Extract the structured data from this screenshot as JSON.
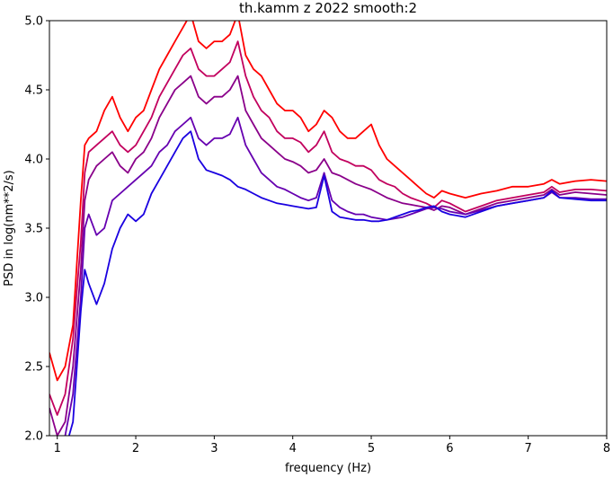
{
  "chart_data": {
    "type": "line",
    "title": "th.kamm z 2022 smooth:2",
    "xlabel": "frequency (Hz)",
    "ylabel": "PSD in log(nm**2/s)",
    "xlim": [
      0.9,
      8.0
    ],
    "ylim": [
      2.0,
      5.0
    ],
    "xticks": [
      "1",
      "2",
      "3",
      "4",
      "5",
      "6",
      "7",
      "8"
    ],
    "yticks": [
      "2.0",
      "2.5",
      "3.0",
      "3.5",
      "4.0",
      "4.5",
      "5.0"
    ],
    "grid": false,
    "legend": "none",
    "series": [
      {
        "color": "#ff0000",
        "x": [
          0.9,
          1.0,
          1.1,
          1.2,
          1.3,
          1.35,
          1.4,
          1.5,
          1.6,
          1.7,
          1.8,
          1.9,
          2.0,
          2.1,
          2.2,
          2.3,
          2.4,
          2.5,
          2.6,
          2.7,
          2.8,
          2.9,
          3.0,
          3.1,
          3.2,
          3.3,
          3.4,
          3.5,
          3.6,
          3.7,
          3.8,
          3.9,
          4.0,
          4.1,
          4.2,
          4.3,
          4.4,
          4.5,
          4.6,
          4.7,
          4.8,
          4.9,
          5.0,
          5.1,
          5.2,
          5.3,
          5.4,
          5.5,
          5.6,
          5.7,
          5.8,
          5.9,
          6.0,
          6.2,
          6.4,
          6.6,
          6.8,
          7.0,
          7.2,
          7.3,
          7.4,
          7.6,
          7.8,
          8.0
        ],
        "y": [
          2.6,
          2.4,
          2.5,
          2.8,
          3.7,
          4.1,
          4.15,
          4.2,
          4.35,
          4.45,
          4.3,
          4.2,
          4.3,
          4.35,
          4.5,
          4.65,
          4.75,
          4.85,
          4.95,
          5.05,
          4.85,
          4.8,
          4.85,
          4.85,
          4.9,
          5.05,
          4.75,
          4.65,
          4.6,
          4.5,
          4.4,
          4.35,
          4.35,
          4.3,
          4.2,
          4.25,
          4.35,
          4.3,
          4.2,
          4.15,
          4.15,
          4.2,
          4.25,
          4.1,
          4.0,
          3.95,
          3.9,
          3.85,
          3.8,
          3.75,
          3.72,
          3.77,
          3.75,
          3.72,
          3.75,
          3.77,
          3.8,
          3.8,
          3.82,
          3.85,
          3.82,
          3.84,
          3.85,
          3.84
        ]
      },
      {
        "color": "#c2005e",
        "x": [
          0.9,
          1.0,
          1.1,
          1.2,
          1.3,
          1.35,
          1.4,
          1.5,
          1.6,
          1.7,
          1.8,
          1.9,
          2.0,
          2.1,
          2.2,
          2.3,
          2.4,
          2.5,
          2.6,
          2.7,
          2.8,
          2.9,
          3.0,
          3.1,
          3.2,
          3.3,
          3.4,
          3.5,
          3.6,
          3.7,
          3.8,
          3.9,
          4.0,
          4.1,
          4.2,
          4.3,
          4.4,
          4.5,
          4.6,
          4.7,
          4.8,
          4.9,
          5.0,
          5.1,
          5.2,
          5.3,
          5.4,
          5.5,
          5.6,
          5.7,
          5.8,
          5.9,
          6.0,
          6.2,
          6.4,
          6.6,
          6.8,
          7.0,
          7.2,
          7.3,
          7.4,
          7.6,
          7.8,
          8.0
        ],
        "y": [
          2.3,
          2.15,
          2.3,
          2.7,
          3.4,
          3.9,
          4.05,
          4.1,
          4.15,
          4.2,
          4.1,
          4.05,
          4.1,
          4.2,
          4.3,
          4.45,
          4.55,
          4.65,
          4.75,
          4.8,
          4.65,
          4.6,
          4.6,
          4.65,
          4.7,
          4.85,
          4.6,
          4.45,
          4.35,
          4.3,
          4.2,
          4.15,
          4.15,
          4.12,
          4.05,
          4.1,
          4.2,
          4.05,
          4.0,
          3.98,
          3.95,
          3.95,
          3.92,
          3.85,
          3.82,
          3.8,
          3.75,
          3.72,
          3.7,
          3.68,
          3.65,
          3.7,
          3.68,
          3.62,
          3.66,
          3.7,
          3.72,
          3.74,
          3.76,
          3.8,
          3.76,
          3.78,
          3.78,
          3.77
        ]
      },
      {
        "color": "#8a008a",
        "x": [
          0.9,
          1.0,
          1.1,
          1.2,
          1.3,
          1.35,
          1.4,
          1.5,
          1.6,
          1.7,
          1.8,
          1.9,
          2.0,
          2.1,
          2.2,
          2.3,
          2.4,
          2.5,
          2.6,
          2.7,
          2.8,
          2.9,
          3.0,
          3.1,
          3.2,
          3.3,
          3.4,
          3.5,
          3.6,
          3.7,
          3.8,
          3.9,
          4.0,
          4.1,
          4.2,
          4.3,
          4.4,
          4.5,
          4.6,
          4.7,
          4.8,
          4.9,
          5.0,
          5.1,
          5.2,
          5.3,
          5.4,
          5.5,
          5.6,
          5.7,
          5.8,
          5.9,
          6.0,
          6.2,
          6.4,
          6.6,
          6.8,
          7.0,
          7.2,
          7.3,
          7.4,
          7.6,
          7.8,
          8.0
        ],
        "y": [
          2.2,
          2.0,
          2.1,
          2.5,
          3.2,
          3.7,
          3.85,
          3.95,
          4.0,
          4.05,
          3.95,
          3.9,
          4.0,
          4.05,
          4.15,
          4.3,
          4.4,
          4.5,
          4.55,
          4.6,
          4.45,
          4.4,
          4.45,
          4.45,
          4.5,
          4.6,
          4.35,
          4.25,
          4.15,
          4.1,
          4.05,
          4.0,
          3.98,
          3.95,
          3.9,
          3.92,
          4.0,
          3.9,
          3.88,
          3.85,
          3.82,
          3.8,
          3.78,
          3.75,
          3.72,
          3.7,
          3.68,
          3.67,
          3.66,
          3.65,
          3.63,
          3.66,
          3.65,
          3.6,
          3.64,
          3.68,
          3.7,
          3.72,
          3.74,
          3.78,
          3.74,
          3.76,
          3.75,
          3.74
        ]
      },
      {
        "color": "#6600b0",
        "x": [
          0.9,
          1.0,
          1.1,
          1.2,
          1.3,
          1.35,
          1.4,
          1.5,
          1.6,
          1.7,
          1.8,
          1.9,
          2.0,
          2.1,
          2.2,
          2.3,
          2.4,
          2.5,
          2.6,
          2.7,
          2.8,
          2.9,
          3.0,
          3.1,
          3.2,
          3.3,
          3.4,
          3.5,
          3.6,
          3.7,
          3.8,
          3.9,
          4.0,
          4.1,
          4.2,
          4.3,
          4.4,
          4.5,
          4.6,
          4.7,
          4.8,
          4.9,
          5.0,
          5.1,
          5.2,
          5.3,
          5.4,
          5.5,
          5.6,
          5.7,
          5.8,
          5.9,
          6.0,
          6.2,
          6.4,
          6.6,
          6.8,
          7.0,
          7.2,
          7.3,
          7.4,
          7.6,
          7.8,
          8.0
        ],
        "y": [
          2.0,
          1.9,
          2.0,
          2.3,
          3.0,
          3.5,
          3.6,
          3.45,
          3.5,
          3.7,
          3.75,
          3.8,
          3.85,
          3.9,
          3.95,
          4.05,
          4.1,
          4.2,
          4.25,
          4.3,
          4.15,
          4.1,
          4.15,
          4.15,
          4.18,
          4.3,
          4.1,
          4.0,
          3.9,
          3.85,
          3.8,
          3.78,
          3.75,
          3.72,
          3.7,
          3.72,
          3.9,
          3.7,
          3.65,
          3.62,
          3.6,
          3.6,
          3.58,
          3.57,
          3.56,
          3.57,
          3.58,
          3.6,
          3.62,
          3.64,
          3.65,
          3.64,
          3.62,
          3.6,
          3.63,
          3.66,
          3.68,
          3.7,
          3.72,
          3.76,
          3.72,
          3.72,
          3.71,
          3.71
        ]
      },
      {
        "color": "#1a00e0",
        "x": [
          0.9,
          1.0,
          1.1,
          1.2,
          1.3,
          1.35,
          1.4,
          1.5,
          1.6,
          1.7,
          1.8,
          1.9,
          2.0,
          2.1,
          2.2,
          2.3,
          2.4,
          2.5,
          2.6,
          2.7,
          2.8,
          2.9,
          3.0,
          3.1,
          3.2,
          3.3,
          3.4,
          3.5,
          3.6,
          3.7,
          3.8,
          3.9,
          4.0,
          4.1,
          4.2,
          4.3,
          4.4,
          4.5,
          4.6,
          4.7,
          4.8,
          4.9,
          5.0,
          5.1,
          5.2,
          5.3,
          5.4,
          5.5,
          5.6,
          5.7,
          5.8,
          5.9,
          6.0,
          6.2,
          6.4,
          6.6,
          6.8,
          7.0,
          7.2,
          7.3,
          7.4,
          7.6,
          7.8,
          8.0
        ],
        "y": [
          1.9,
          1.85,
          1.9,
          2.1,
          2.9,
          3.2,
          3.1,
          2.95,
          3.1,
          3.35,
          3.5,
          3.6,
          3.55,
          3.6,
          3.75,
          3.85,
          3.95,
          4.05,
          4.15,
          4.2,
          4.0,
          3.92,
          3.9,
          3.88,
          3.85,
          3.8,
          3.78,
          3.75,
          3.72,
          3.7,
          3.68,
          3.67,
          3.66,
          3.65,
          3.64,
          3.65,
          3.88,
          3.62,
          3.58,
          3.57,
          3.56,
          3.56,
          3.55,
          3.55,
          3.56,
          3.58,
          3.6,
          3.62,
          3.63,
          3.65,
          3.66,
          3.62,
          3.6,
          3.58,
          3.62,
          3.66,
          3.68,
          3.7,
          3.72,
          3.77,
          3.72,
          3.71,
          3.7,
          3.7
        ]
      }
    ]
  }
}
